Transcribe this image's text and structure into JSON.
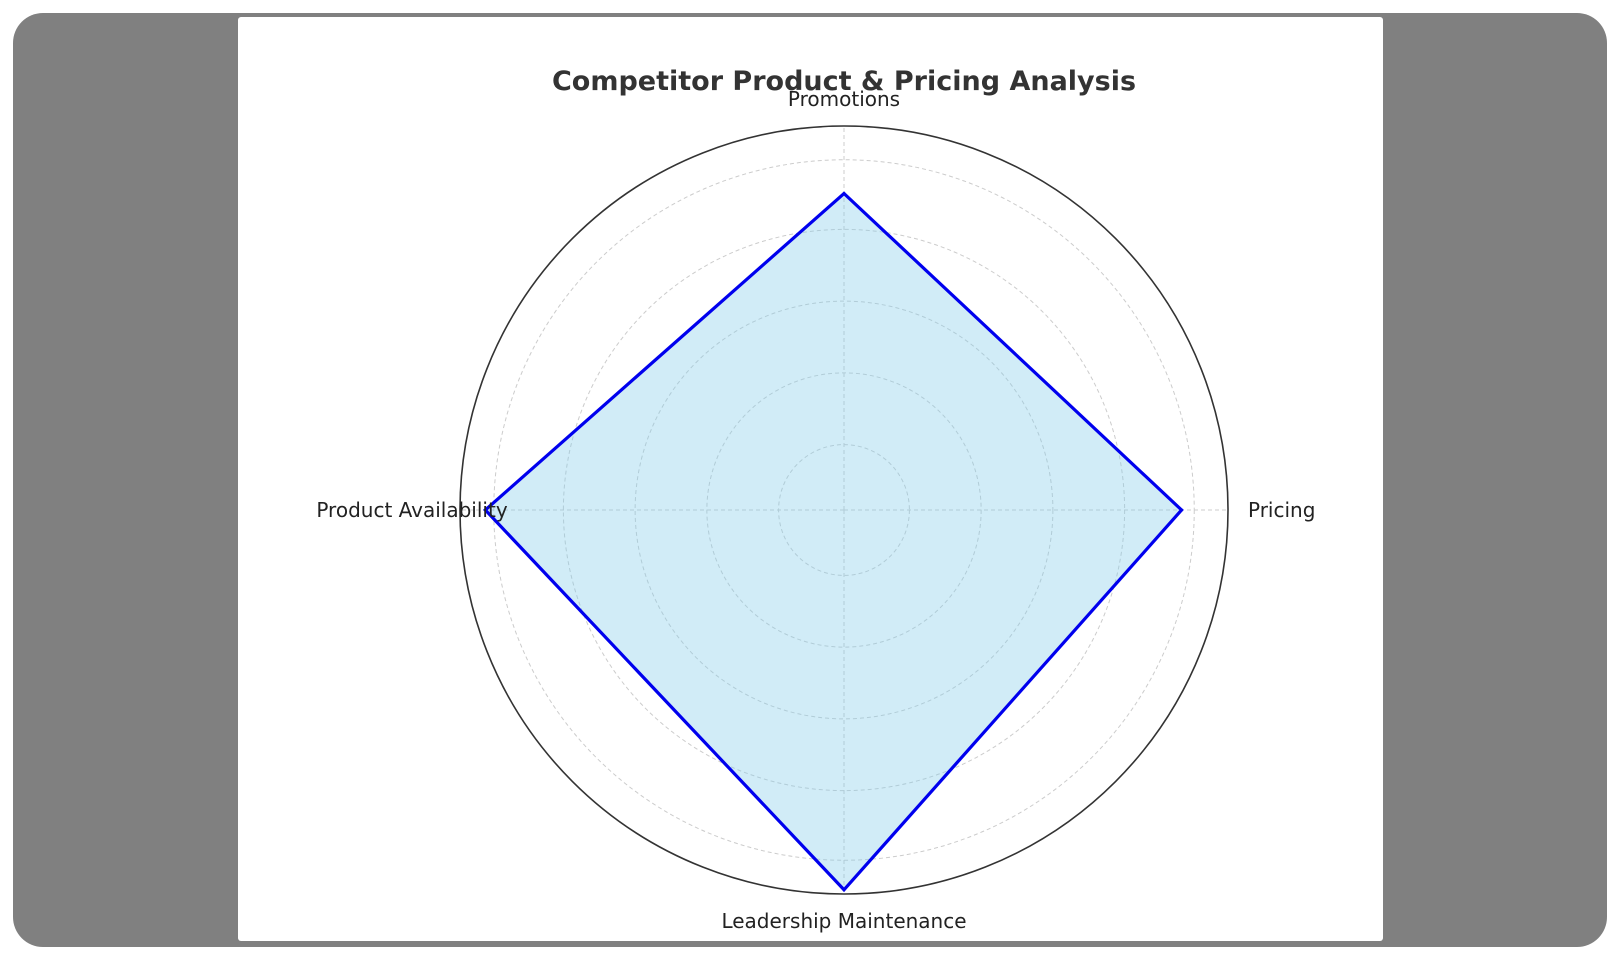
{
  "chart_data": {
    "type": "radar",
    "title": "Competitor Product & Pricing Analysis",
    "categories": [
      "Pricing",
      "Promotions",
      "Product Availability",
      "Leadership Maintenance"
    ],
    "series": [
      {
        "values": [
          8.0,
          7.5,
          8.5,
          9.0
        ]
      }
    ],
    "rlim": [
      0,
      9.1
    ],
    "grid": true,
    "colors": {
      "line": "#0000ee",
      "fill": "#87ceeb",
      "fill_opacity": 0.38,
      "grid": "#cccccc",
      "outer": "#333333"
    }
  }
}
